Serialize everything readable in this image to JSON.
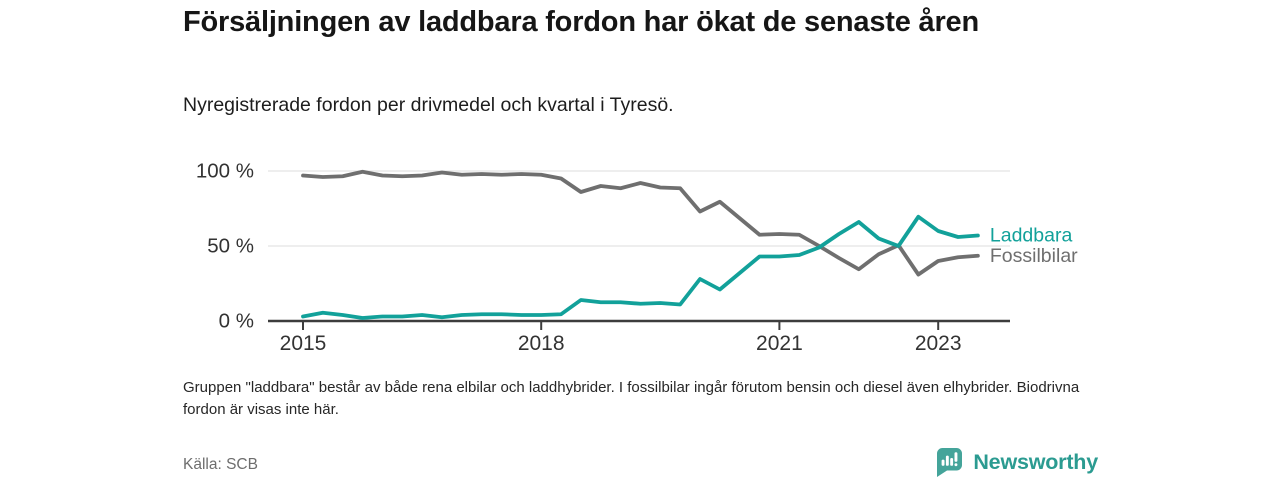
{
  "header": {
    "title": "Försäljningen av laddbara fordon har ökat de senaste åren",
    "subtitle": "Nyregistrerade fordon per drivmedel och kvartal i Tyresö."
  },
  "chart_data": {
    "type": "line",
    "title": "Försäljningen av laddbara fordon har ökat de senaste åren",
    "subtitle": "Nyregistrerade fordon per drivmedel och kvartal i Tyresö.",
    "xlabel": "",
    "ylabel": "",
    "ylim": [
      0,
      100
    ],
    "unit": "%",
    "grid": "horizontal gridlines at 50 % and 100 %",
    "legend_position": "labels at right end of lines",
    "x": [
      "2015Q1",
      "2015Q2",
      "2015Q3",
      "2015Q4",
      "2016Q1",
      "2016Q2",
      "2016Q3",
      "2016Q4",
      "2017Q1",
      "2017Q2",
      "2017Q3",
      "2017Q4",
      "2018Q1",
      "2018Q2",
      "2018Q3",
      "2018Q4",
      "2019Q1",
      "2019Q2",
      "2019Q3",
      "2019Q4",
      "2020Q1",
      "2020Q2",
      "2020Q3",
      "2020Q4",
      "2021Q1",
      "2021Q2",
      "2021Q3",
      "2021Q4",
      "2022Q1",
      "2022Q2",
      "2022Q3",
      "2022Q4",
      "2023Q1",
      "2023Q2",
      "2023Q3"
    ],
    "x_ticks": [
      {
        "label": "2015",
        "quarter_index": 0
      },
      {
        "label": "2018",
        "quarter_index": 12
      },
      {
        "label": "2021",
        "quarter_index": 24
      },
      {
        "label": "2023",
        "quarter_index": 32
      }
    ],
    "y_ticks": [
      {
        "value": 0,
        "label": "0 %"
      },
      {
        "value": 50,
        "label": "50 %"
      },
      {
        "value": 100,
        "label": "100 %"
      }
    ],
    "series": [
      {
        "name": "Laddbara",
        "color": "#12a19a",
        "values": [
          3,
          5.5,
          4,
          2,
          3,
          3,
          4,
          2.5,
          4,
          4.5,
          4.5,
          4,
          4,
          4.5,
          14,
          12.5,
          12.5,
          11.5,
          12,
          11,
          28,
          21,
          32,
          43,
          43,
          44,
          49,
          58,
          66,
          55,
          50,
          69.5,
          60,
          56,
          57
        ]
      },
      {
        "name": "Fossilbilar",
        "color": "#6f6f6f",
        "values": [
          97,
          96,
          96.5,
          99.5,
          97,
          96.5,
          97,
          99,
          97.5,
          98,
          97.5,
          98,
          97.5,
          95,
          86,
          90,
          88.5,
          92,
          89,
          88.5,
          73,
          79.5,
          68.5,
          57.5,
          58,
          57.5,
          50,
          42,
          34.5,
          44.5,
          50.5,
          31,
          40,
          42.5,
          43.5
        ]
      }
    ],
    "colors": {
      "axis": "#3d3d3d",
      "gridline": "#e4e4e4",
      "tick_text": "#333333"
    }
  },
  "footnote": "Gruppen \"laddbara\" består av både rena elbilar och laddhybrider. I fossilbilar ingår förutom bensin och diesel även elhybrider. Biodrivna fordon är visas inte här.",
  "source": "Källa: SCB",
  "logo": {
    "text": "Newsworthy",
    "icon": "newsworthy-pin-barchart-icon",
    "icon_color": "#44a49a",
    "text_color": "#2b9b91"
  }
}
